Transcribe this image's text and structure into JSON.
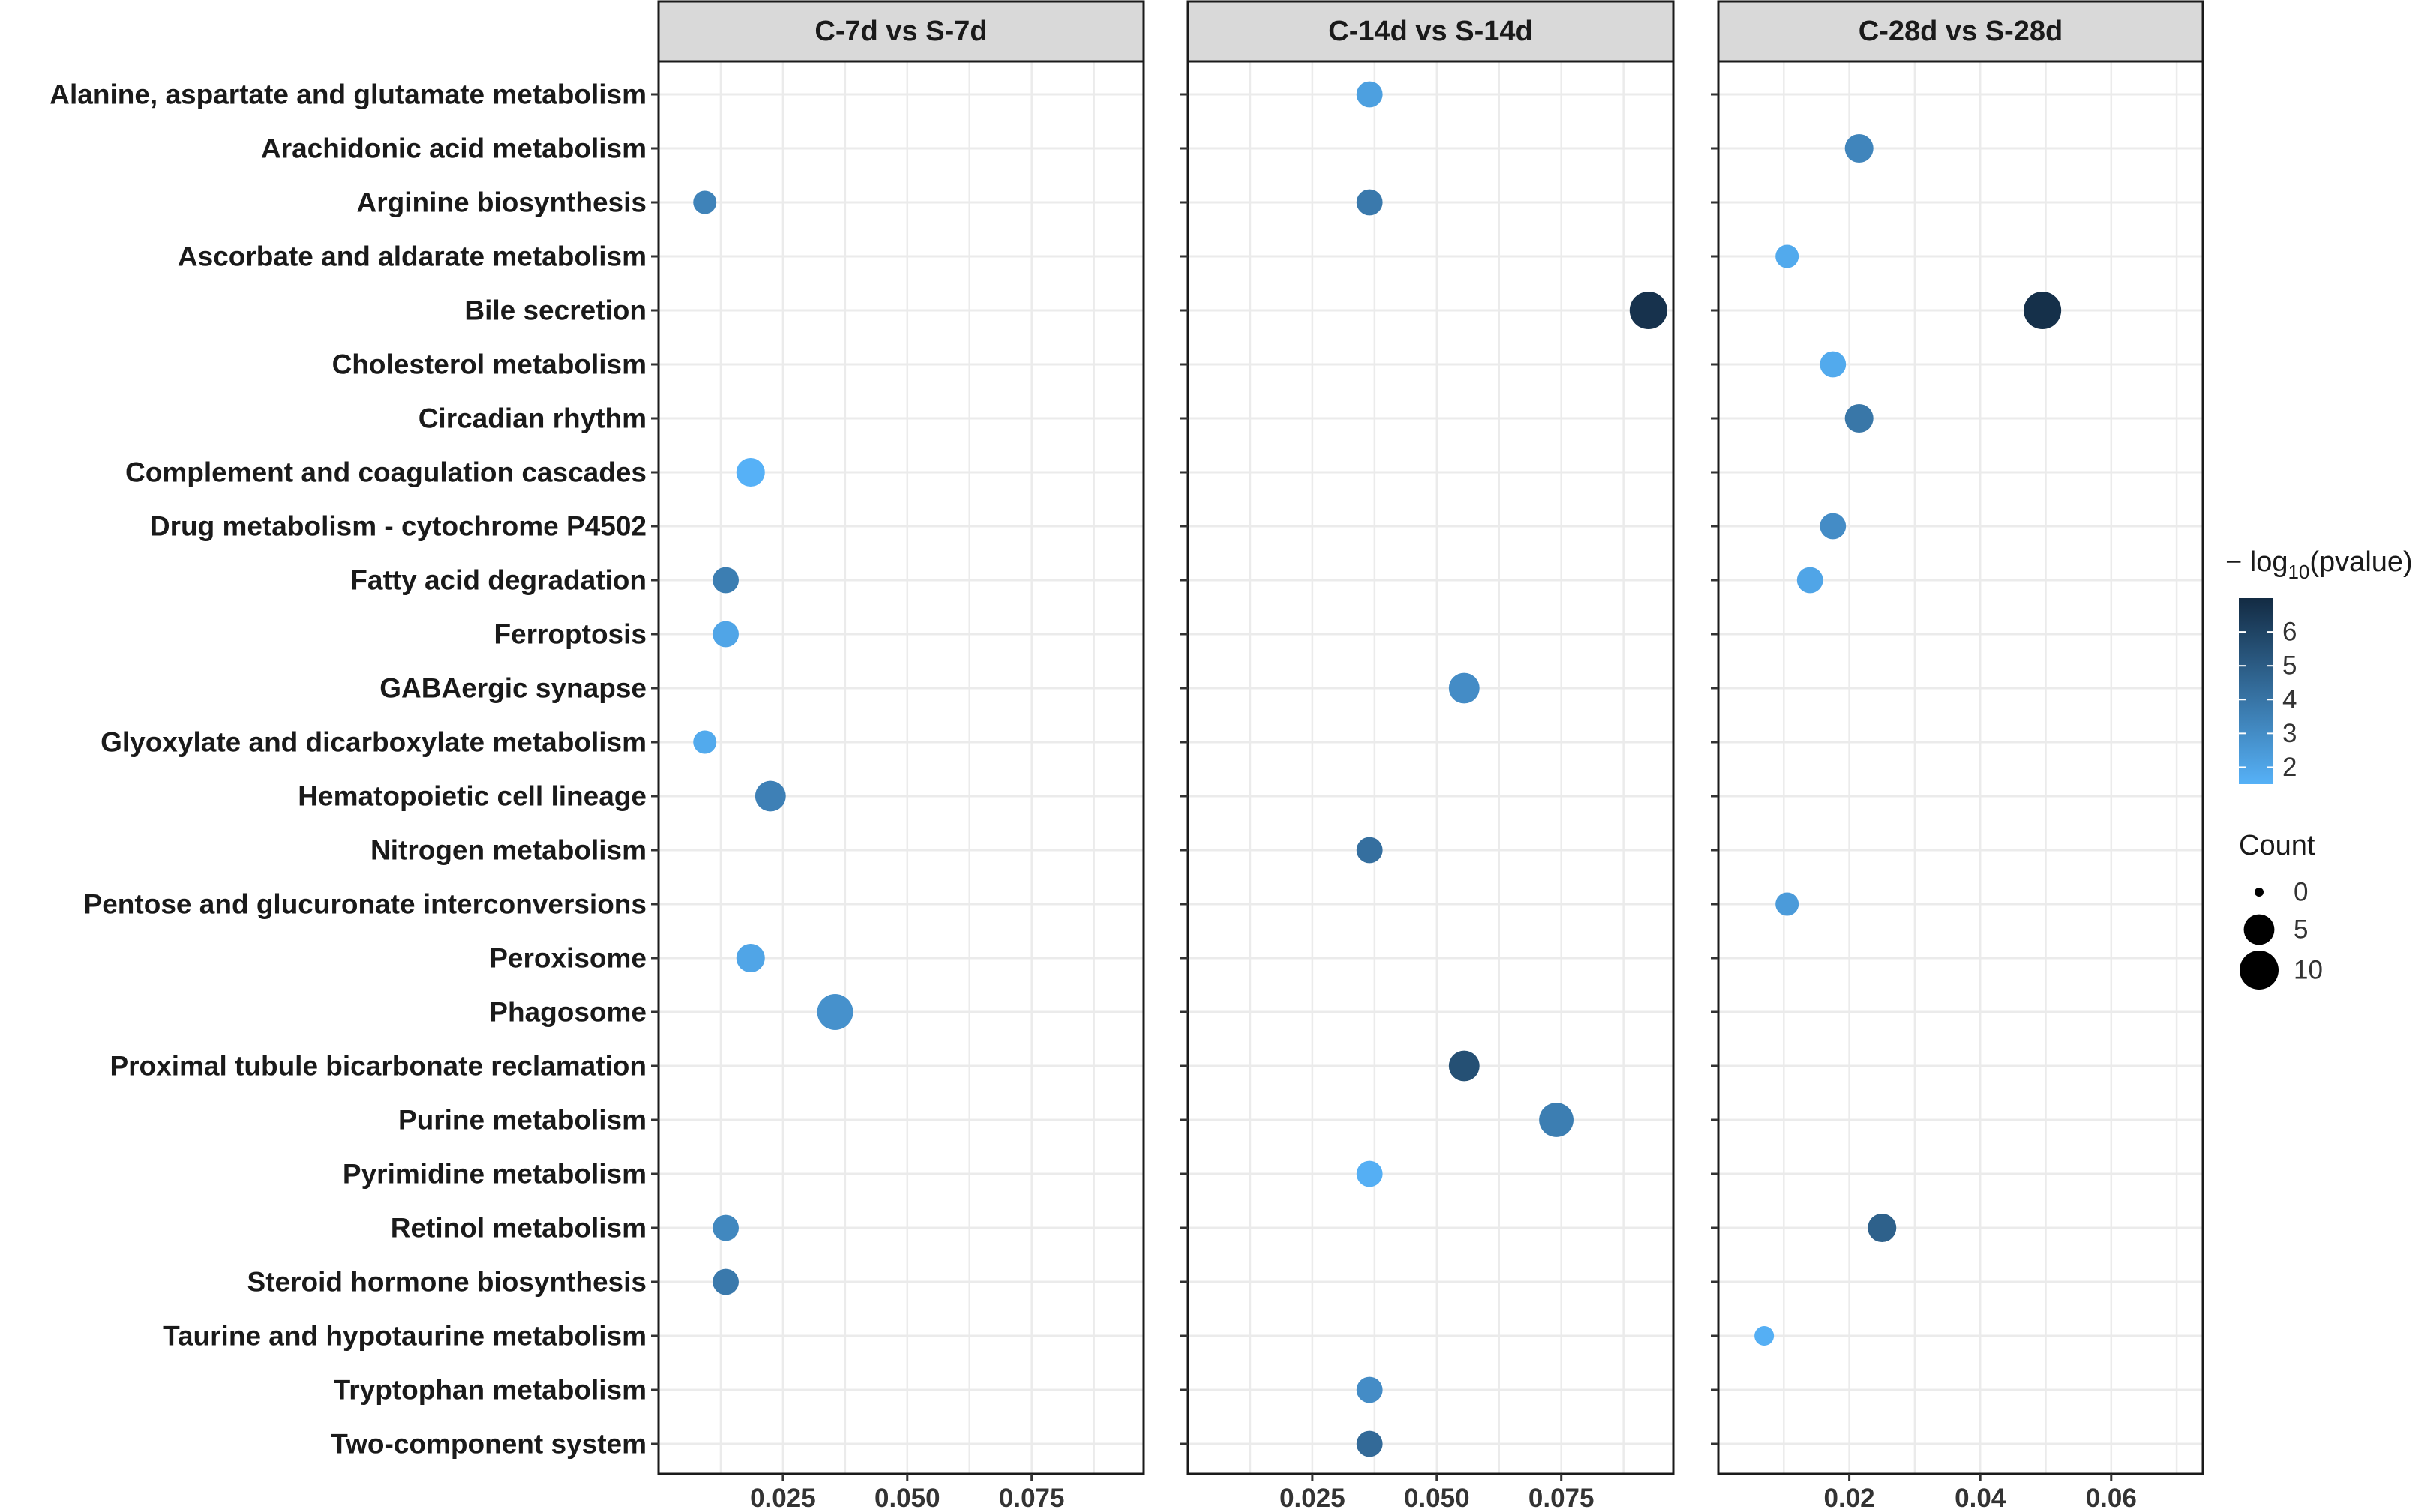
{
  "chart_data": {
    "type": "scatter",
    "subtype": "faceted dot plot (enrichment)",
    "y_categories": [
      "Alanine, aspartate and glutamate metabolism",
      "Arachidonic acid metabolism",
      "Arginine biosynthesis",
      "Ascorbate and aldarate metabolism",
      "Bile secretion",
      "Cholesterol metabolism",
      "Circadian rhythm",
      "Complement and coagulation cascades",
      "Drug metabolism - cytochrome P4502",
      "Fatty acid degradation",
      "Ferroptosis",
      "GABAergic synapse",
      "Glyoxylate and dicarboxylate metabolism",
      "Hematopoietic cell lineage",
      "Nitrogen metabolism",
      "Pentose and glucuronate interconversions",
      "Peroxisome",
      "Phagosome",
      "Proximal tubule bicarbonate reclamation",
      "Purine metabolism",
      "Pyrimidine metabolism",
      "Retinol metabolism",
      "Steroid hormone biosynthesis",
      "Taurine and hypotaurine metabolism",
      "Tryptophan metabolism",
      "Two-component system"
    ],
    "facets": [
      {
        "title": "C-7d vs S-7d",
        "xlim": [
          0.0,
          0.0975
        ],
        "xticks": [
          0.025,
          0.05,
          0.075
        ],
        "xtick_labels": [
          "0.025",
          "0.050",
          "0.075"
        ],
        "points": [
          {
            "pathway": "Arginine biosynthesis",
            "x": 0.0093,
            "count": 2,
            "neglog10p": 3.4
          },
          {
            "pathway": "Complement and coagulation cascades",
            "x": 0.0185,
            "count": 4,
            "neglog10p": 1.5
          },
          {
            "pathway": "Fatty acid degradation",
            "x": 0.0135,
            "count": 3,
            "neglog10p": 3.6
          },
          {
            "pathway": "Ferroptosis",
            "x": 0.0135,
            "count": 3,
            "neglog10p": 2.0
          },
          {
            "pathway": "Glyoxylate and dicarboxylate metabolism",
            "x": 0.0093,
            "count": 2,
            "neglog10p": 1.8
          },
          {
            "pathway": "Hematopoietic cell lineage",
            "x": 0.0225,
            "count": 5,
            "neglog10p": 3.5
          },
          {
            "pathway": "Peroxisome",
            "x": 0.0185,
            "count": 4,
            "neglog10p": 2.0
          },
          {
            "pathway": "Phagosome",
            "x": 0.0355,
            "count": 8,
            "neglog10p": 2.8
          },
          {
            "pathway": "Retinol metabolism",
            "x": 0.0135,
            "count": 3,
            "neglog10p": 3.2
          },
          {
            "pathway": "Steroid hormone biosynthesis",
            "x": 0.0135,
            "count": 3,
            "neglog10p": 3.8
          }
        ]
      },
      {
        "title": "C-14d vs S-14d",
        "xlim": [
          0.0,
          0.0975
        ],
        "xticks": [
          0.025,
          0.05,
          0.075
        ],
        "xtick_labels": [
          "0.025",
          "0.050",
          "0.075"
        ],
        "points": [
          {
            "pathway": "Alanine, aspartate and glutamate metabolism",
            "x": 0.0365,
            "count": 3,
            "neglog10p": 2.2
          },
          {
            "pathway": "Arginine biosynthesis",
            "x": 0.0365,
            "count": 3,
            "neglog10p": 3.8
          },
          {
            "pathway": "Bile secretion",
            "x": 0.0925,
            "count": 9,
            "neglog10p": 6.7
          },
          {
            "pathway": "GABAergic synapse",
            "x": 0.0555,
            "count": 5,
            "neglog10p": 3.0
          },
          {
            "pathway": "Nitrogen metabolism",
            "x": 0.0365,
            "count": 3,
            "neglog10p": 4.2
          },
          {
            "pathway": "Proximal tubule bicarbonate reclamation",
            "x": 0.0555,
            "count": 5,
            "neglog10p": 5.5
          },
          {
            "pathway": "Purine metabolism",
            "x": 0.074,
            "count": 7,
            "neglog10p": 3.6
          },
          {
            "pathway": "Pyrimidine metabolism",
            "x": 0.0365,
            "count": 3,
            "neglog10p": 1.6
          },
          {
            "pathway": "Tryptophan metabolism",
            "x": 0.0365,
            "count": 3,
            "neglog10p": 3.0
          },
          {
            "pathway": "Two-component system",
            "x": 0.0365,
            "count": 3,
            "neglog10p": 4.4
          }
        ]
      },
      {
        "title": "C-28d vs S-28d",
        "xlim": [
          0.0,
          0.074
        ],
        "xticks": [
          0.02,
          0.04,
          0.06
        ],
        "xtick_labels": [
          "0.02",
          "0.04",
          "0.06"
        ],
        "points": [
          {
            "pathway": "Arachidonic acid metabolism",
            "x": 0.0215,
            "count": 4,
            "neglog10p": 3.3
          },
          {
            "pathway": "Ascorbate and aldarate metabolism",
            "x": 0.0105,
            "count": 2,
            "neglog10p": 1.8
          },
          {
            "pathway": "Bile secretion",
            "x": 0.0495,
            "count": 9,
            "neglog10p": 6.8
          },
          {
            "pathway": "Cholesterol metabolism",
            "x": 0.0175,
            "count": 3,
            "neglog10p": 1.8
          },
          {
            "pathway": "Circadian rhythm",
            "x": 0.0215,
            "count": 4,
            "neglog10p": 3.9
          },
          {
            "pathway": "Drug metabolism - cytochrome P4502",
            "x": 0.0175,
            "count": 3,
            "neglog10p": 3.0
          },
          {
            "pathway": "Fatty acid degradation",
            "x": 0.014,
            "count": 3,
            "neglog10p": 2.0
          },
          {
            "pathway": "Pentose and glucuronate interconversions",
            "x": 0.0105,
            "count": 2,
            "neglog10p": 2.4
          },
          {
            "pathway": "Retinol metabolism",
            "x": 0.025,
            "count": 4,
            "neglog10p": 4.8
          },
          {
            "pathway": "Taurine and hypotaurine metabolism",
            "x": 0.007,
            "count": 1,
            "neglog10p": 1.6
          }
        ]
      }
    ],
    "color_scale": {
      "title": "− log10(pvalue)",
      "title_main": "− log",
      "title_sub": "10",
      "title_tail": "(pvalue)",
      "range": [
        1.5,
        7.0
      ],
      "ticks": [
        2,
        3,
        4,
        5,
        6
      ],
      "low_color": "#56B1F7",
      "high_color": "#132B43"
    },
    "size_scale": {
      "title": "Count",
      "entries": [
        0,
        5,
        10
      ],
      "range": [
        0,
        10
      ]
    },
    "panel_background": "#ffffff",
    "strip_background": "#d9d9d9",
    "grid_color": "#ebebeb"
  }
}
